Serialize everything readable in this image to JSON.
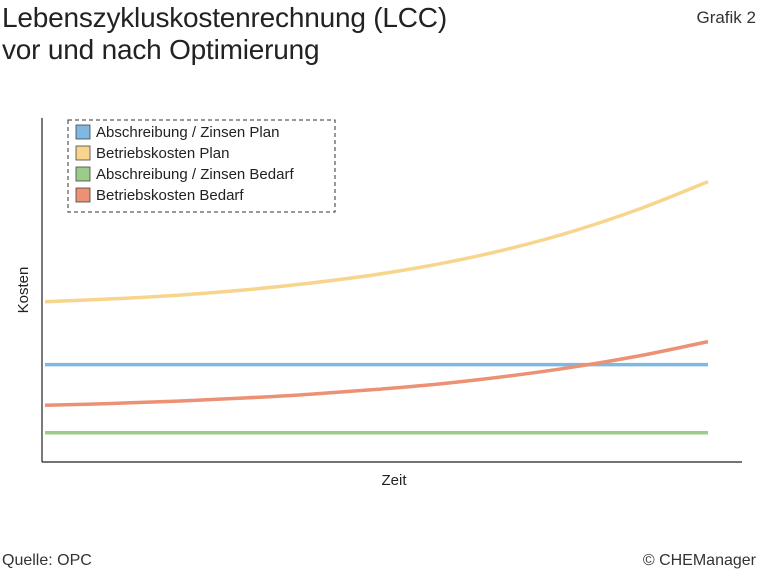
{
  "header": {
    "title_line1": "Lebenszykluskostenrechnung (LCC)",
    "title_line2": "vor und nach Optimierung",
    "figure_label": "Grafik 2"
  },
  "footer": {
    "source": "Quelle: OPC",
    "copyright": "© CHEManager"
  },
  "chart_data": {
    "type": "line",
    "title": "Lebenszykluskostenrechnung (LCC) vor und nach Optimierung",
    "xlabel": "Zeit",
    "ylabel": "Kosten",
    "xlim": [
      0,
      1
    ],
    "ylim": [
      0,
      1
    ],
    "grid": false,
    "legend_position": "top-left",
    "x": [
      0,
      0.1,
      0.2,
      0.3,
      0.4,
      0.5,
      0.6,
      0.7,
      0.8,
      0.9,
      1.0
    ],
    "series": [
      {
        "name": "Abschreibung / Zinsen Plan",
        "color": "#7fb8e3",
        "values": [
          0.283,
          0.283,
          0.283,
          0.283,
          0.283,
          0.283,
          0.283,
          0.283,
          0.283,
          0.283,
          0.283
        ]
      },
      {
        "name": "Betriebskosten Plan",
        "color": "#f7d58c",
        "values": [
          0.466,
          0.474,
          0.485,
          0.5,
          0.52,
          0.545,
          0.578,
          0.62,
          0.673,
          0.738,
          0.815
        ]
      },
      {
        "name": "Abschreibung / Zinsen Bedarf",
        "color": "#9ccc8a",
        "values": [
          0.085,
          0.085,
          0.085,
          0.085,
          0.085,
          0.085,
          0.085,
          0.085,
          0.085,
          0.085,
          0.085
        ]
      },
      {
        "name": "Betriebskosten Bedarf",
        "color": "#ec9173",
        "values": [
          0.165,
          0.17,
          0.177,
          0.186,
          0.197,
          0.211,
          0.228,
          0.25,
          0.277,
          0.31,
          0.35
        ]
      }
    ]
  }
}
